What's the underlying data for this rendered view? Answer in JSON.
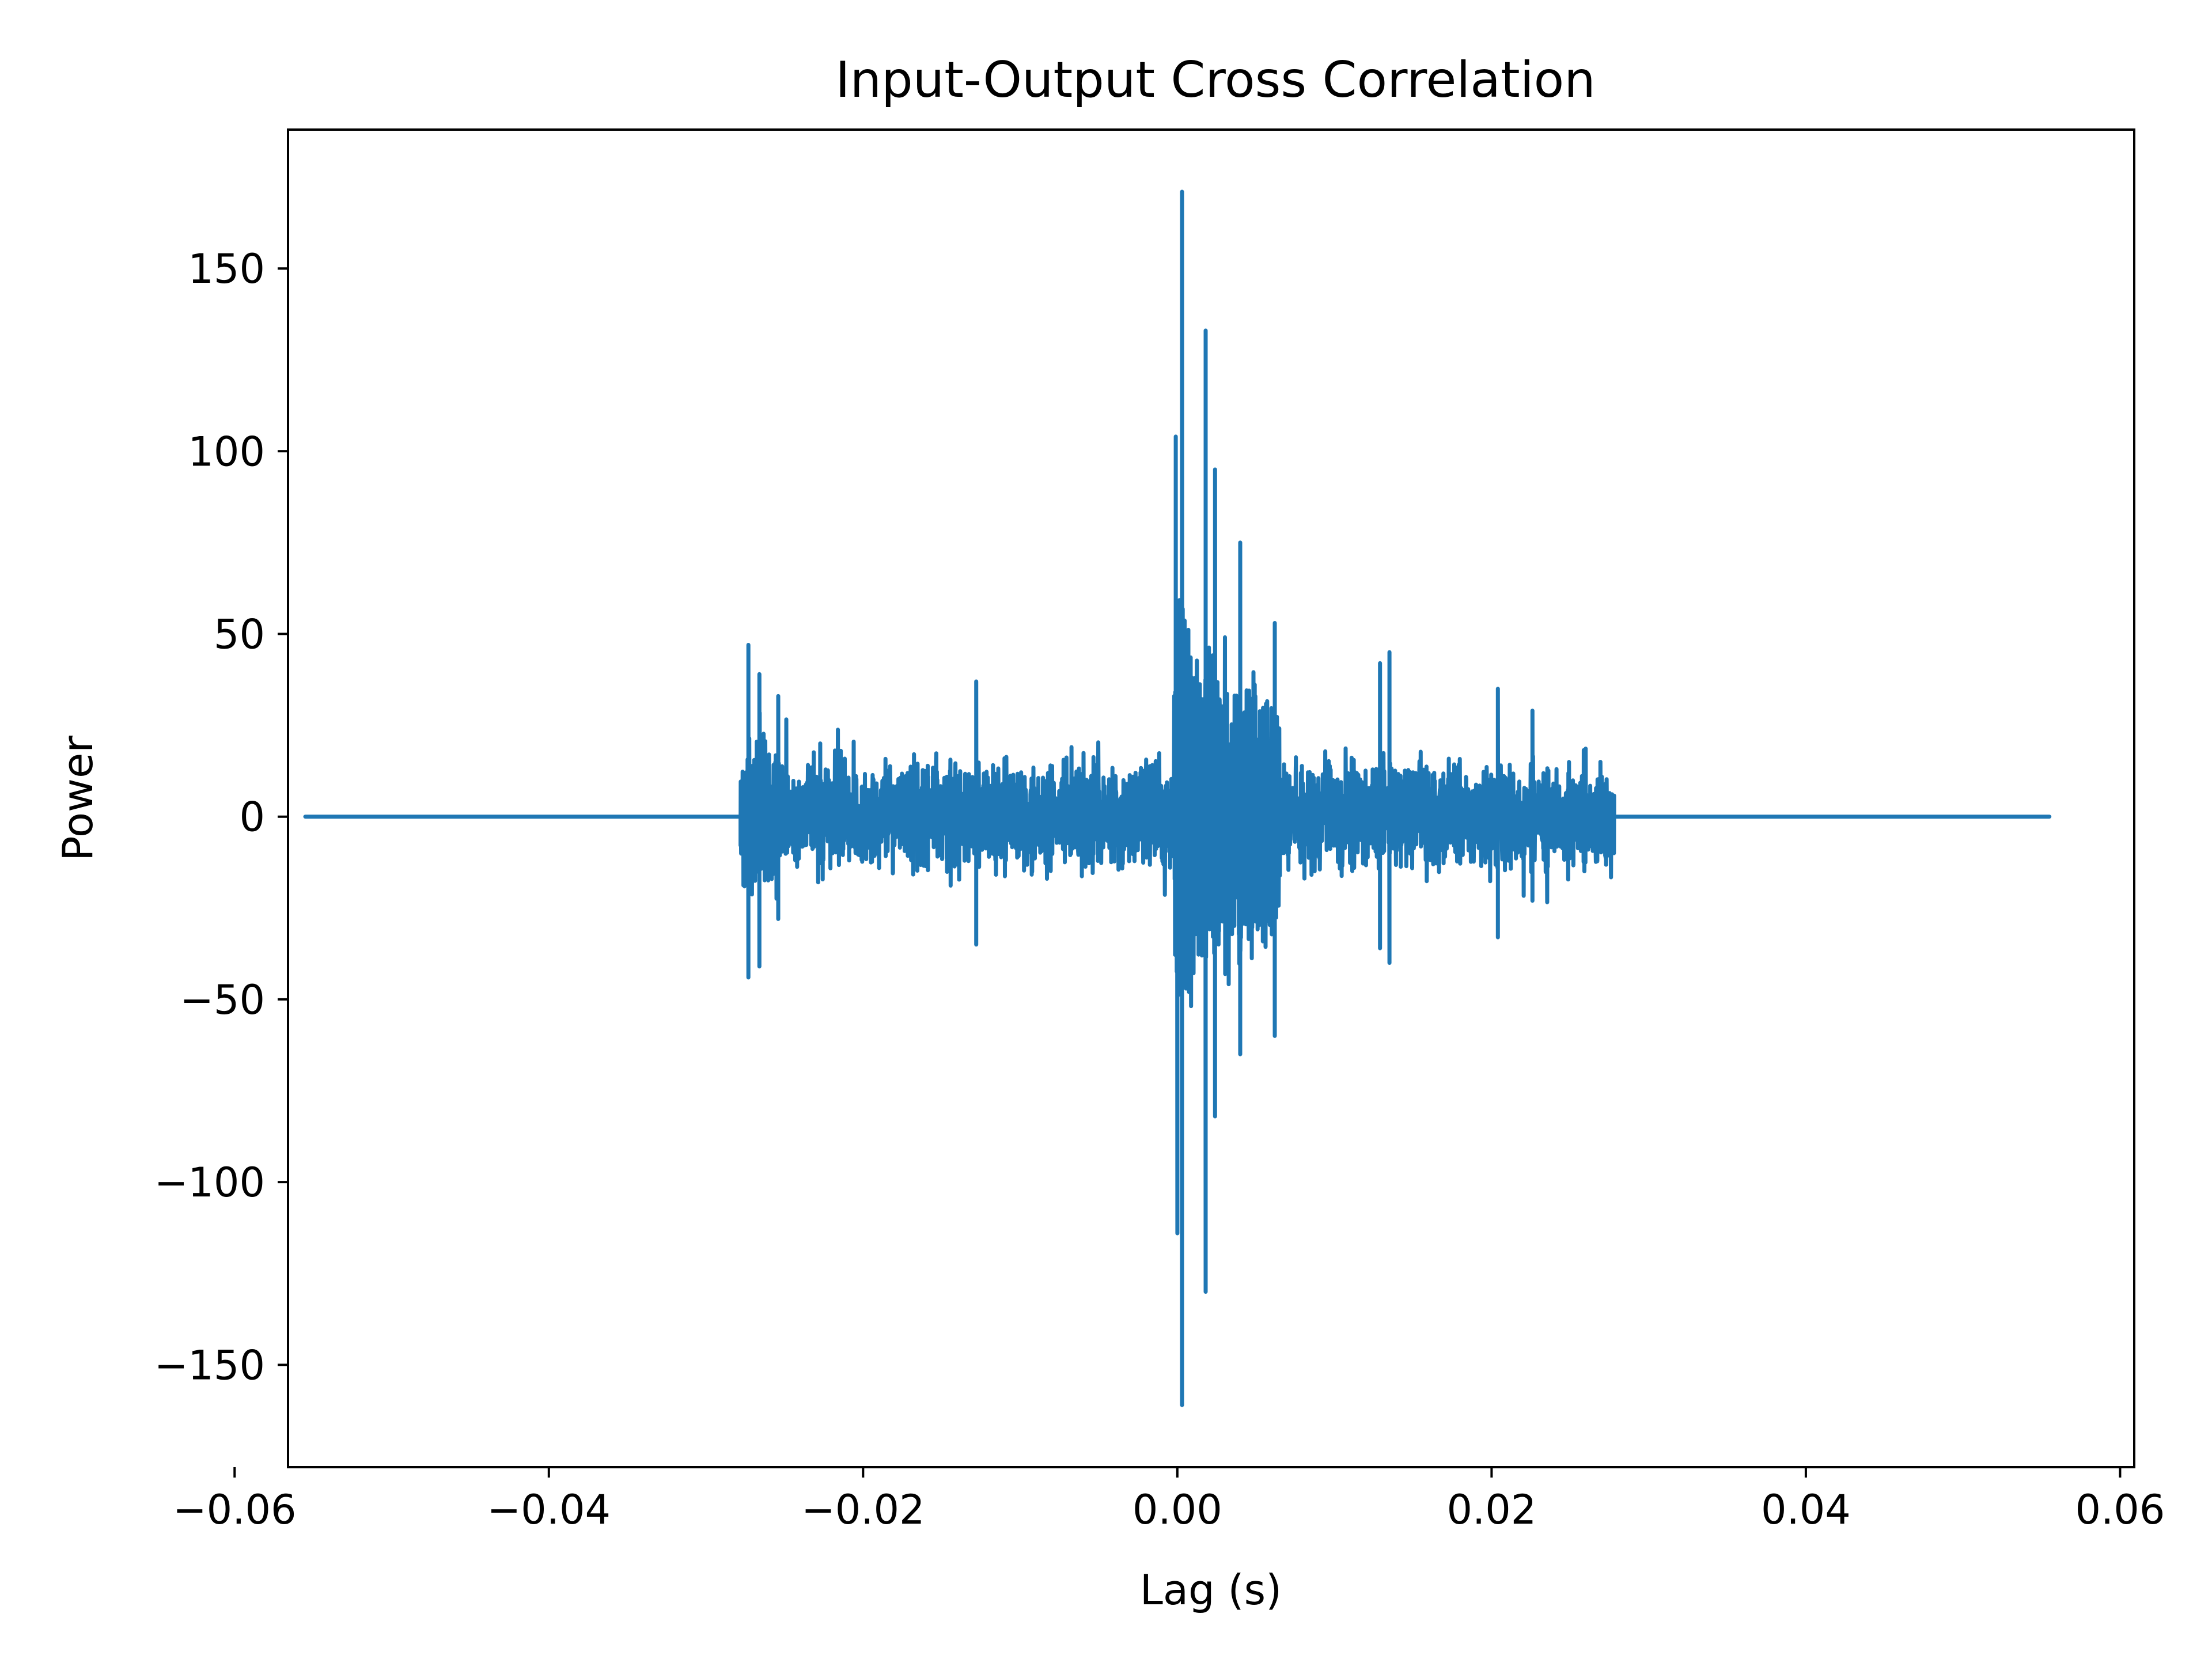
{
  "chart_data": {
    "type": "line",
    "title": "Input-Output Cross Correlation",
    "xlabel": "Lag (s)",
    "ylabel": "Power",
    "xlim": [
      -0.0566,
      0.0609
    ],
    "ylim": [
      -178,
      188
    ],
    "grid": false,
    "legend": "none",
    "x_ticks": [
      -0.06,
      -0.04,
      -0.02,
      0.0,
      0.02,
      0.04,
      0.06
    ],
    "x_tick_labels": [
      "−0.06",
      "−0.04",
      "−0.02",
      "0.00",
      "0.02",
      "0.04",
      "0.06"
    ],
    "y_ticks": [
      150,
      100,
      50,
      0,
      -50,
      -100,
      -150
    ],
    "y_tick_labels": [
      "150",
      "100",
      "50",
      "0",
      "−50",
      "−100",
      "−150"
    ],
    "series": [
      {
        "color": "#1f77b4",
        "x_range": [
          -0.0555,
          0.0555
        ],
        "nonzero_x_range": [
          -0.0278,
          0.0278
        ],
        "peaks": [
          {
            "x": 0.0003,
            "y": 171
          },
          {
            "x": 0.0003,
            "y": -161
          },
          {
            "x": 0.0018,
            "y": 133
          },
          {
            "x": 0.0018,
            "y": -130
          },
          {
            "x": -0.0001,
            "y": 104
          },
          {
            "x": 0.0,
            "y": -114
          },
          {
            "x": 0.0024,
            "y": 95
          },
          {
            "x": 0.0024,
            "y": -82
          },
          {
            "x": 0.004,
            "y": 75
          },
          {
            "x": 0.004,
            "y": -65
          },
          {
            "x": 0.0062,
            "y": 53
          },
          {
            "x": 0.0062,
            "y": -60
          },
          {
            "x": -0.0273,
            "y": 47
          },
          {
            "x": -0.0273,
            "y": -44
          },
          {
            "x": -0.0266,
            "y": 39
          },
          {
            "x": -0.0266,
            "y": -41
          },
          {
            "x": -0.0254,
            "y": 33
          },
          {
            "x": -0.0254,
            "y": -28
          },
          {
            "x": -0.0128,
            "y": 37
          },
          {
            "x": -0.0128,
            "y": -35
          },
          {
            "x": 0.0129,
            "y": 42
          },
          {
            "x": 0.0129,
            "y": -36
          },
          {
            "x": 0.0135,
            "y": 45
          },
          {
            "x": 0.0135,
            "y": -40
          },
          {
            "x": 0.0204,
            "y": 35
          },
          {
            "x": 0.0204,
            "y": -33
          },
          {
            "x": 0.0226,
            "y": 29
          },
          {
            "x": 0.0226,
            "y": -23
          }
        ]
      }
    ]
  }
}
